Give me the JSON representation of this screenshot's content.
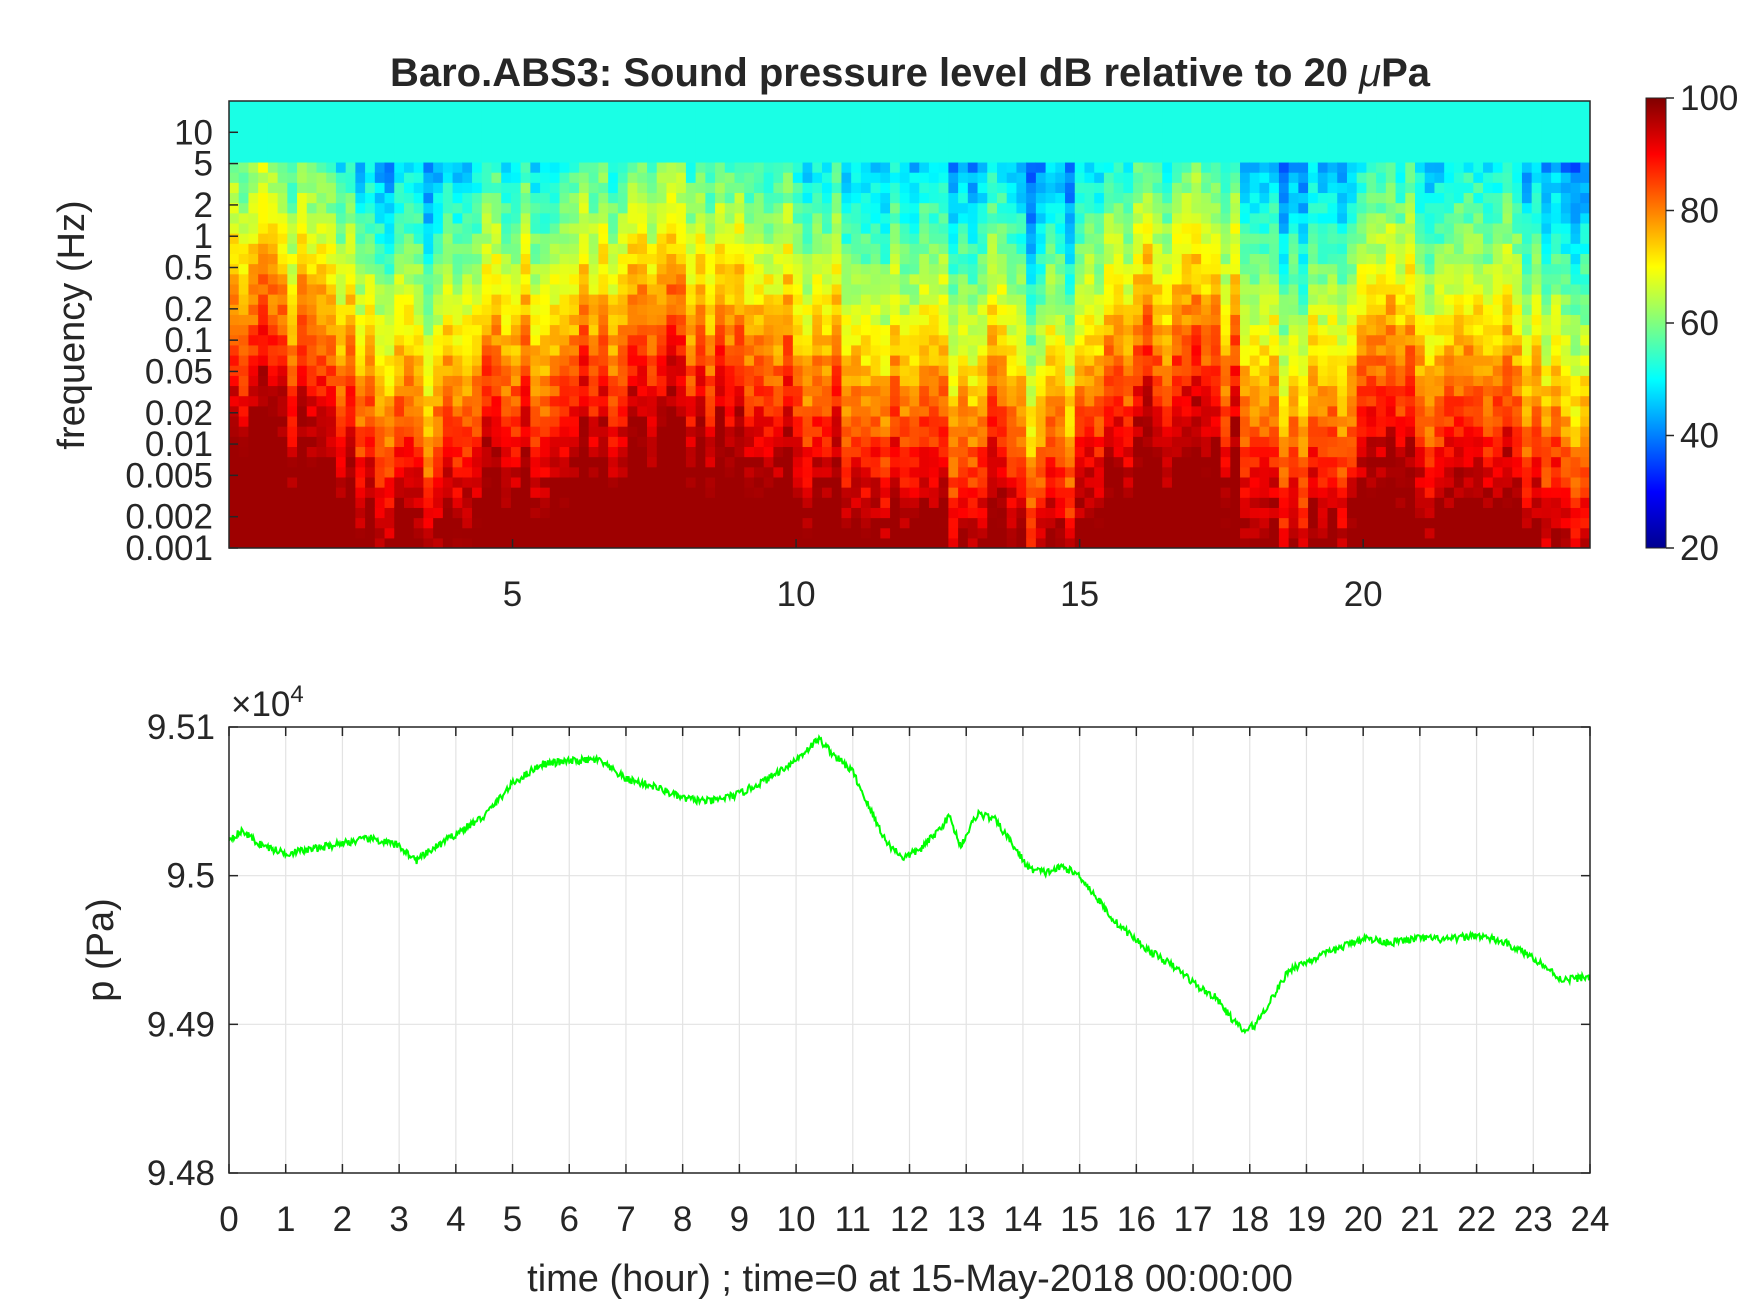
{
  "figure": {
    "title_main": "Baro.ABS3: Sound pressure level dB relative to 20 ",
    "title_mu": "μ",
    "title_unit": "Pa"
  },
  "spectrogram": {
    "type": "heatmap",
    "ylabel": "frequency (Hz)",
    "yscale": "log",
    "y_ticks": [
      {
        "value": 0.001,
        "label": "0.001"
      },
      {
        "value": 0.002,
        "label": "0.002"
      },
      {
        "value": 0.005,
        "label": "0.005"
      },
      {
        "value": 0.01,
        "label": "0.01"
      },
      {
        "value": 0.02,
        "label": "0.02"
      },
      {
        "value": 0.05,
        "label": "0.05"
      },
      {
        "value": 0.1,
        "label": "0.1"
      },
      {
        "value": 0.2,
        "label": "0.2"
      },
      {
        "value": 0.5,
        "label": "0.5"
      },
      {
        "value": 1,
        "label": "1"
      },
      {
        "value": 2,
        "label": "2"
      },
      {
        "value": 5,
        "label": "5"
      },
      {
        "value": 10,
        "label": "10"
      }
    ],
    "ylim": [
      0.001,
      20
    ],
    "x_ticks": [
      {
        "value": 5,
        "label": "5"
      },
      {
        "value": 10,
        "label": "10"
      },
      {
        "value": 15,
        "label": "15"
      },
      {
        "value": 20,
        "label": "20"
      }
    ],
    "xlim": [
      0,
      24
    ],
    "colormap": "jet",
    "colorbar": {
      "range": [
        20,
        100
      ],
      "ticks": [
        {
          "value": 20,
          "label": "20"
        },
        {
          "value": 40,
          "label": "40"
        },
        {
          "value": 60,
          "label": "60"
        },
        {
          "value": 80,
          "label": "80"
        },
        {
          "value": 100,
          "label": "100"
        }
      ]
    }
  },
  "chart_data": {
    "type": "line",
    "xlabel": "time (hour) ; time=0 at 15-May-2018 00:00:00",
    "ylabel": "p (Pa)",
    "exponent_base": "×10",
    "exponent_power": "4",
    "xlim": [
      0,
      24
    ],
    "ylim": [
      94800,
      95100
    ],
    "grid": true,
    "line_color": "#00ff00",
    "x_ticks": [
      "0",
      "1",
      "2",
      "3",
      "4",
      "5",
      "6",
      "7",
      "8",
      "9",
      "10",
      "11",
      "12",
      "13",
      "14",
      "15",
      "16",
      "17",
      "18",
      "19",
      "20",
      "21",
      "22",
      "23",
      "24"
    ],
    "y_ticks": [
      {
        "value": 94800,
        "label": "9.48"
      },
      {
        "value": 94900,
        "label": "9.49"
      },
      {
        "value": 95000,
        "label": "9.5"
      },
      {
        "value": 95100,
        "label": "9.51"
      }
    ],
    "x": [
      0,
      0.25,
      0.5,
      0.75,
      1,
      1.5,
      2,
      2.5,
      3,
      3.3,
      3.6,
      4,
      4.5,
      5,
      5.5,
      6,
      6.5,
      7,
      7.5,
      8,
      8.5,
      9,
      9.5,
      10,
      10.4,
      10.7,
      11,
      11.3,
      11.6,
      11.9,
      12.2,
      12.5,
      12.7,
      12.9,
      13.2,
      13.5,
      13.8,
      14.1,
      14.4,
      14.7,
      15,
      15.3,
      15.6,
      15.9,
      16.2,
      16.5,
      16.8,
      17.1,
      17.4,
      17.7,
      17.9,
      18.1,
      18.4,
      18.7,
      19,
      19.5,
      20,
      20.5,
      21,
      21.5,
      22,
      22.5,
      23,
      23.5,
      24
    ],
    "y": [
      95025,
      95030,
      95022,
      95018,
      95015,
      95018,
      95022,
      95025,
      95020,
      95010,
      95018,
      95028,
      95040,
      95062,
      95075,
      95077,
      95078,
      95065,
      95060,
      95052,
      95050,
      95055,
      95065,
      95078,
      95092,
      95080,
      95070,
      95045,
      95022,
      95012,
      95018,
      95030,
      95040,
      95020,
      95042,
      95038,
      95022,
      95005,
      95002,
      95006,
      95000,
      94985,
      94970,
      94960,
      94950,
      94943,
      94935,
      94925,
      94918,
      94903,
      94895,
      94900,
      94918,
      94937,
      94942,
      94950,
      94958,
      94955,
      94958,
      94957,
      94960,
      94955,
      94945,
      94930,
      94932
    ]
  }
}
